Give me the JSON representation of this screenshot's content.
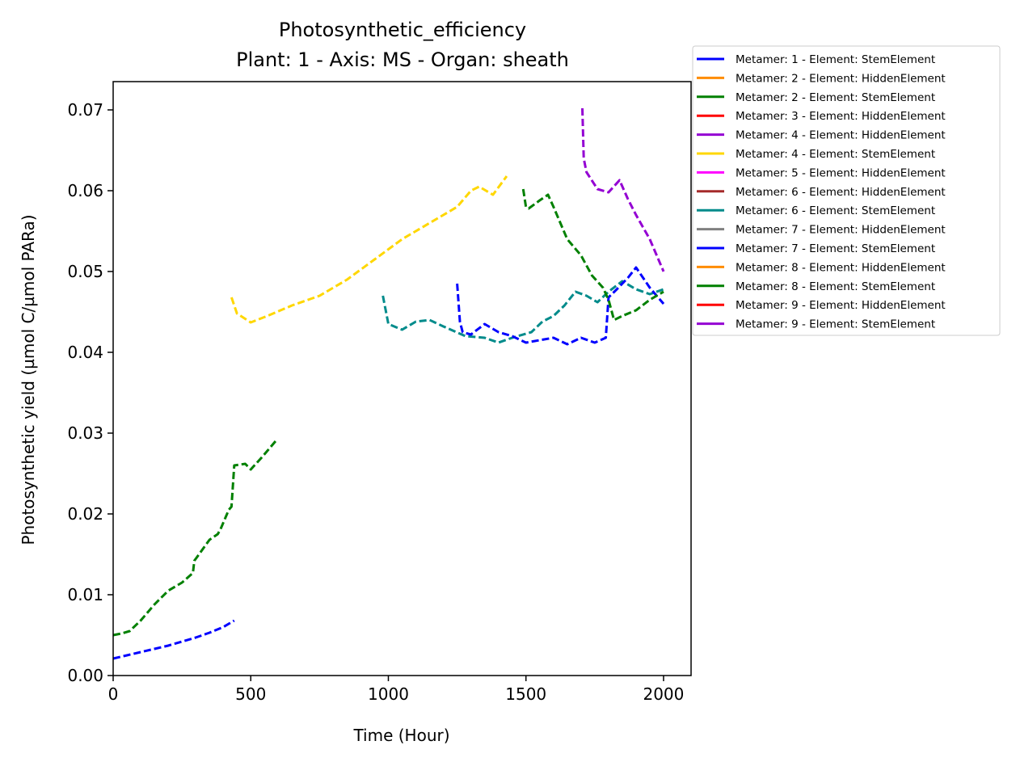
{
  "chart_data": {
    "type": "line",
    "title": "Photosynthetic_efficiency",
    "subtitle": "Plant: 1 - Axis: MS - Organ: sheath",
    "xlabel": "Time (Hour)",
    "ylabel": "Photosynthetic yield (µmol C/µmol PARa)",
    "xlim": [
      0,
      2100
    ],
    "ylim": [
      0,
      0.0735
    ],
    "xticks": [
      0,
      500,
      1000,
      1500,
      2000
    ],
    "xtick_labels": [
      "0",
      "500",
      "1000",
      "1500",
      "2000"
    ],
    "yticks": [
      0,
      0.01,
      0.02,
      0.03,
      0.04,
      0.05,
      0.06,
      0.07
    ],
    "ytick_labels": [
      "0.00",
      "0.01",
      "0.02",
      "0.03",
      "0.04",
      "0.05",
      "0.06",
      "0.07"
    ],
    "grid": false,
    "legend_position": "outside-top-right",
    "series": [
      {
        "name": "Metamer: 1 - Element: StemElement",
        "color": "#0000ff",
        "x": [
          0,
          50,
          100,
          150,
          200,
          250,
          300,
          350,
          400,
          440
        ],
        "y": [
          0.0021,
          0.0025,
          0.0029,
          0.0033,
          0.0037,
          0.0042,
          0.0047,
          0.0053,
          0.006,
          0.0068
        ]
      },
      {
        "name": "Metamer: 2 - Element: HiddenElement",
        "color": "#ff8c00",
        "x": [],
        "y": []
      },
      {
        "name": "Metamer: 2 - Element: StemElement",
        "color": "#008000",
        "x": [
          0,
          30,
          60,
          100,
          150,
          200,
          250,
          290,
          295,
          350,
          380,
          390,
          420,
          430,
          440,
          480,
          500,
          540,
          590
        ],
        "y": [
          0.005,
          0.0052,
          0.0055,
          0.0068,
          0.0088,
          0.0105,
          0.0115,
          0.0127,
          0.0142,
          0.0168,
          0.0175,
          0.0181,
          0.0205,
          0.0209,
          0.026,
          0.0262,
          0.0255,
          0.027,
          0.029
        ]
      },
      {
        "name": "Metamer: 3 - Element: HiddenElement",
        "color": "#ff0000",
        "x": [],
        "y": []
      },
      {
        "name": "Metamer: 4 - Element: HiddenElement",
        "color": "#9400d3",
        "x": [
          1705,
          1710,
          1720,
          1760,
          1800,
          1840,
          1870,
          1900,
          1950,
          2000
        ],
        "y": [
          0.0702,
          0.064,
          0.0623,
          0.0602,
          0.0598,
          0.0613,
          0.059,
          0.057,
          0.054,
          0.05
        ]
      },
      {
        "name": "Metamer: 4 - Element: StemElement",
        "color": "#ffd700",
        "x": [
          430,
          450,
          500,
          560,
          650,
          750,
          850,
          950,
          1050,
          1150,
          1250,
          1300,
          1330,
          1380,
          1430
        ],
        "y": [
          0.0468,
          0.0448,
          0.0437,
          0.0445,
          0.0458,
          0.047,
          0.049,
          0.0515,
          0.054,
          0.056,
          0.058,
          0.06,
          0.0605,
          0.0595,
          0.0618
        ]
      },
      {
        "name": "Metamer: 5 - Element: HiddenElement",
        "color": "#ff00ff",
        "x": [],
        "y": []
      },
      {
        "name": "Metamer: 6 - Element: HiddenElement",
        "color": "#a52a2a",
        "x": [],
        "y": []
      },
      {
        "name": "Metamer: 6 - Element: StemElement",
        "color": "#008b8b",
        "x": [
          980,
          1000,
          1050,
          1100,
          1150,
          1200,
          1280,
          1350,
          1400,
          1450,
          1520,
          1560,
          1600,
          1640,
          1680,
          1720,
          1760,
          1800,
          1850,
          1900,
          1950,
          2000
        ],
        "y": [
          0.047,
          0.0435,
          0.0428,
          0.0438,
          0.044,
          0.0432,
          0.042,
          0.0418,
          0.0412,
          0.0418,
          0.0425,
          0.0438,
          0.0445,
          0.0458,
          0.0475,
          0.047,
          0.0462,
          0.0475,
          0.0488,
          0.0478,
          0.0472,
          0.0478
        ]
      },
      {
        "name": "Metamer: 7 - Element: HiddenElement",
        "color": "#808080",
        "x": [],
        "y": []
      },
      {
        "name": "Metamer: 7 - Element: StemElement",
        "color": "#0000ff",
        "x": [
          1250,
          1260,
          1270,
          1300,
          1350,
          1400,
          1450,
          1500,
          1550,
          1600,
          1650,
          1700,
          1750,
          1790,
          1800,
          1830,
          1870,
          1900,
          1930,
          1950,
          1975,
          2000
        ],
        "y": [
          0.0485,
          0.0438,
          0.0425,
          0.0422,
          0.0435,
          0.0425,
          0.042,
          0.0412,
          0.0415,
          0.0418,
          0.041,
          0.0418,
          0.0412,
          0.0418,
          0.0468,
          0.0478,
          0.0492,
          0.0505,
          0.049,
          0.048,
          0.047,
          0.046
        ]
      },
      {
        "name": "Metamer: 8 - Element: HiddenElement",
        "color": "#ff8c00",
        "x": [],
        "y": []
      },
      {
        "name": "Metamer: 8 - Element: StemElement",
        "color": "#008000",
        "x": [
          1490,
          1500,
          1510,
          1550,
          1580,
          1600,
          1650,
          1700,
          1740,
          1780,
          1800,
          1820,
          1850,
          1900,
          1950,
          2000
        ],
        "y": [
          0.0602,
          0.058,
          0.0578,
          0.0588,
          0.0595,
          0.058,
          0.054,
          0.052,
          0.0495,
          0.048,
          0.0465,
          0.044,
          0.0445,
          0.0452,
          0.0465,
          0.0475
        ]
      },
      {
        "name": "Metamer: 9 - Element: HiddenElement",
        "color": "#ff0000",
        "x": [],
        "y": []
      },
      {
        "name": "Metamer: 9 - Element: StemElement",
        "color": "#9400d3",
        "x": [],
        "y": []
      }
    ]
  }
}
